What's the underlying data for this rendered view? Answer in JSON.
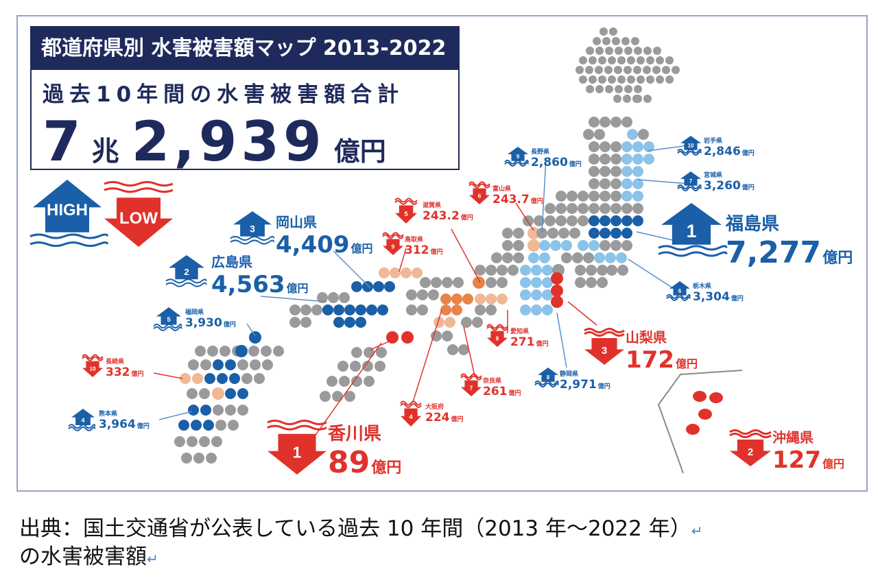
{
  "title": "都道府県別 水害被害額マップ 2013-2022",
  "subtitle": "過去10年間の水害被害額合計",
  "total": {
    "num1": "7",
    "mid": "兆",
    "num2": "2,939",
    "unit": "億円"
  },
  "legend": {
    "high": "HIGH",
    "low": "LOW",
    "high_color": "#1a5fa8",
    "low_color": "#e0322b"
  },
  "high_ranking": [
    {
      "rank": "1",
      "pref": "福島県",
      "value": "7,277",
      "unit": "億円"
    },
    {
      "rank": "2",
      "pref": "広島県",
      "value": "4,563",
      "unit": "億円"
    },
    {
      "rank": "3",
      "pref": "岡山県",
      "value": "4,409",
      "unit": "億円"
    },
    {
      "rank": "4",
      "pref": "熊本県",
      "value": "3,964",
      "unit": "億円"
    },
    {
      "rank": "5",
      "pref": "福岡県",
      "value": "3,930",
      "unit": "億円"
    },
    {
      "rank": "6",
      "pref": "栃木県",
      "value": "3,304",
      "unit": "億円"
    },
    {
      "rank": "7",
      "pref": "宮城県",
      "value": "3,260",
      "unit": "億円"
    },
    {
      "rank": "8",
      "pref": "静岡県",
      "value": "2,971",
      "unit": "億円"
    },
    {
      "rank": "9",
      "pref": "長野県",
      "value": "2,860",
      "unit": "億円"
    },
    {
      "rank": "10",
      "pref": "岩手県",
      "value": "2,846",
      "unit": "億円"
    }
  ],
  "low_ranking": [
    {
      "rank": "1",
      "pref": "香川県",
      "value": "89",
      "unit": "億円"
    },
    {
      "rank": "2",
      "pref": "沖縄県",
      "value": "127",
      "unit": "億円"
    },
    {
      "rank": "3",
      "pref": "山梨県",
      "value": "172",
      "unit": "億円"
    },
    {
      "rank": "4",
      "pref": "大阪府",
      "value": "224",
      "unit": "億円"
    },
    {
      "rank": "5",
      "pref": "滋賀県",
      "value": "243.2",
      "unit": "億円"
    },
    {
      "rank": "6",
      "pref": "富山県",
      "value": "243.7",
      "unit": "億円"
    },
    {
      "rank": "7",
      "pref": "奈良県",
      "value": "261",
      "unit": "億円"
    },
    {
      "rank": "8",
      "pref": "愛知県",
      "value": "271",
      "unit": "億円"
    },
    {
      "rank": "9",
      "pref": "鳥取県",
      "value": "312",
      "unit": "億円"
    },
    {
      "rank": "10",
      "pref": "長崎県",
      "value": "332",
      "unit": "億円"
    }
  ],
  "dot_colors": {
    "gray": "#9a9a9a",
    "dark_blue": "#1a5fa8",
    "light_blue": "#8cc3e8",
    "red": "#e0322b",
    "orange": "#e8834a",
    "peach": "#f0b896"
  },
  "source": {
    "line1": "出典：国土交通省が公表している過去 10 年間（2013 年～2022 年）",
    "line2": "の水害被害額"
  }
}
